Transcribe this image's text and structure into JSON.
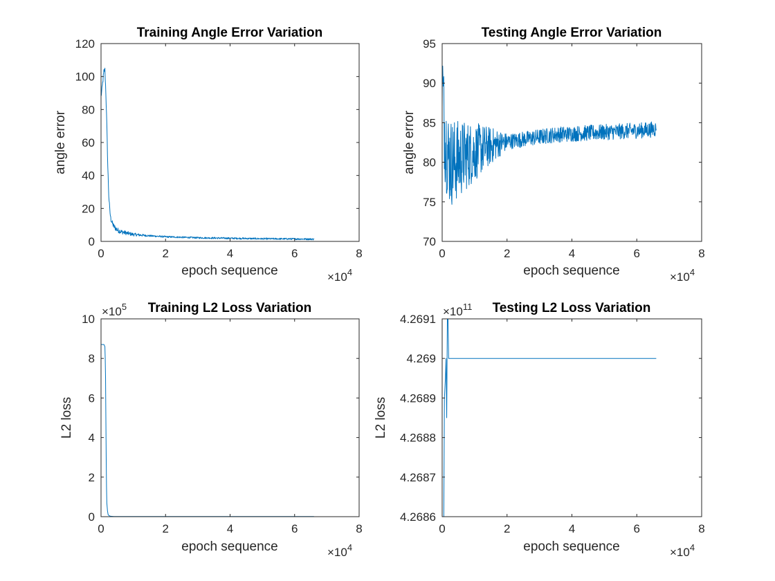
{
  "chart_data": [
    {
      "type": "line",
      "title": "Training Angle Error Variation",
      "xlabel": "epoch sequence",
      "ylabel": "angle error",
      "xlim": [
        0,
        80000
      ],
      "ylim": [
        0,
        120
      ],
      "x_ticks": [
        0,
        20000,
        40000,
        60000,
        80000
      ],
      "x_tick_labels": [
        "0",
        "2",
        "4",
        "6",
        "8"
      ],
      "y_ticks": [
        0,
        20,
        40,
        60,
        80,
        100,
        120
      ],
      "y_tick_labels": [
        "0",
        "20",
        "40",
        "60",
        "80",
        "100",
        "120"
      ],
      "x_multiplier": {
        "base": "×10",
        "exp": "4"
      },
      "y_multiplier": null,
      "series": [
        {
          "color": "#0072BD",
          "x": [
            0,
            300,
            600,
            900,
            1200,
            1500,
            1800,
            2100,
            2400,
            2700,
            3000,
            3500,
            4000,
            5000,
            6000,
            8000,
            10000,
            15000,
            20000,
            30000,
            40000,
            50000,
            60000,
            64000,
            65000,
            66000
          ],
          "y": [
            88,
            92,
            98,
            103,
            104,
            90,
            70,
            45,
            28,
            19,
            14,
            11,
            9,
            7,
            6,
            5,
            4.2,
            3.4,
            2.8,
            2.2,
            1.9,
            1.6,
            1.5,
            1.4,
            1.4,
            1.3
          ],
          "noise_band": 2
        }
      ]
    },
    {
      "type": "line",
      "title": "Testing Angle Error Variation",
      "xlabel": "epoch sequence",
      "ylabel": "angle error",
      "xlim": [
        0,
        80000
      ],
      "ylim": [
        70,
        95
      ],
      "x_ticks": [
        0,
        20000,
        40000,
        60000,
        80000
      ],
      "x_tick_labels": [
        "0",
        "2",
        "4",
        "6",
        "8"
      ],
      "y_ticks": [
        70,
        75,
        80,
        85,
        90,
        95
      ],
      "y_tick_labels": [
        "70",
        "75",
        "80",
        "85",
        "90",
        "95"
      ],
      "x_multiplier": {
        "base": "×10",
        "exp": "4"
      },
      "y_multiplier": null,
      "series": [
        {
          "color": "#0072BD",
          "x": [
            0,
            500,
            1000,
            2000,
            3000,
            5000,
            7000,
            10000,
            13000,
            16000,
            20000,
            25000,
            30000,
            35000,
            40000,
            45000,
            50000,
            55000,
            60000,
            64000,
            65000,
            66000
          ],
          "y": [
            91,
            86,
            83,
            80.5,
            80,
            80.3,
            80.8,
            81.3,
            81.8,
            82.2,
            82.6,
            82.9,
            83.2,
            83.5,
            83.6,
            83.7,
            83.8,
            83.9,
            84,
            84.1,
            84.2,
            84.2
          ],
          "noise_band": 4
        }
      ]
    },
    {
      "type": "line",
      "title": "Training L2 Loss Variation",
      "xlabel": "epoch sequence",
      "ylabel": "L2 loss",
      "xlim": [
        0,
        80000
      ],
      "ylim": [
        0,
        10
      ],
      "x_ticks": [
        0,
        20000,
        40000,
        60000,
        80000
      ],
      "x_tick_labels": [
        "0",
        "2",
        "4",
        "6",
        "8"
      ],
      "y_ticks": [
        0,
        2,
        4,
        6,
        8,
        10
      ],
      "y_tick_labels": [
        "0",
        "2",
        "4",
        "6",
        "8",
        "10"
      ],
      "x_multiplier": {
        "base": "×10",
        "exp": "4"
      },
      "y_multiplier": {
        "base": "×10",
        "exp": "5"
      },
      "series": [
        {
          "color": "#0072BD",
          "x": [
            0,
            300,
            600,
            900,
            1200,
            1300,
            1400,
            1500,
            1600,
            1700,
            1800,
            2000,
            2200,
            2500,
            3000,
            4000,
            10000,
            30000,
            50000,
            66000
          ],
          "y": [
            8.7,
            8.7,
            8.7,
            8.7,
            8.6,
            8.0,
            7.0,
            5.0,
            3.0,
            1.5,
            0.7,
            0.3,
            0.1,
            0.05,
            0.02,
            0.01,
            0.01,
            0.01,
            0.01,
            0.01
          ],
          "noise_band": 0
        }
      ]
    },
    {
      "type": "line",
      "title": "Testing L2 Loss Variation",
      "xlabel": "epoch sequence",
      "ylabel": "L2 loss",
      "xlim": [
        0,
        80000
      ],
      "ylim": [
        4.2686,
        4.2691
      ],
      "x_ticks": [
        0,
        20000,
        40000,
        60000,
        80000
      ],
      "x_tick_labels": [
        "0",
        "2",
        "4",
        "6",
        "8"
      ],
      "y_ticks": [
        4.2686,
        4.2687,
        4.2688,
        4.2689,
        4.269,
        4.2691
      ],
      "y_tick_labels": [
        "4.2686",
        "4.2687",
        "4.2688",
        "4.2689",
        "4.269",
        "4.2691"
      ],
      "x_multiplier": {
        "base": "×10",
        "exp": "4"
      },
      "y_multiplier": {
        "base": "×10",
        "exp": "11"
      },
      "series": [
        {
          "color": "#0072BD",
          "x": [
            500,
            700,
            1000,
            1200,
            1400,
            1600,
            1800,
            2000,
            2200,
            66000
          ],
          "y": [
            4.2686,
            4.2689,
            4.26895,
            4.269,
            4.26885,
            4.2691,
            4.2691,
            4.269,
            4.269,
            4.269
          ],
          "noise_band": 0
        }
      ]
    }
  ]
}
